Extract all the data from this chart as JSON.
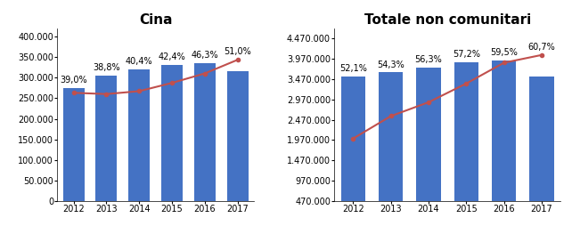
{
  "cina": {
    "title": "Cina",
    "years": [
      2012,
      2013,
      2014,
      2015,
      2016,
      2017
    ],
    "bars": [
      275000,
      305000,
      320000,
      330000,
      335000,
      315000
    ],
    "line": [
      263000,
      260000,
      267000,
      287000,
      310000,
      343000
    ],
    "pct_labels": [
      "39,0%",
      "38,8%",
      "40,4%",
      "42,4%",
      "46,3%",
      "51,0%"
    ],
    "ylim": [
      0,
      420000
    ],
    "yticks": [
      0,
      50000,
      100000,
      150000,
      200000,
      250000,
      300000,
      350000,
      400000
    ]
  },
  "totale": {
    "title": "Totale non comunitari",
    "years": [
      2012,
      2013,
      2014,
      2015,
      2016,
      2017
    ],
    "bars": [
      3530000,
      3630000,
      3750000,
      3880000,
      3930000,
      3540000
    ],
    "line": [
      2010000,
      2560000,
      2900000,
      3360000,
      3870000,
      4060000
    ],
    "pct_labels": [
      "52,1%",
      "54,3%",
      "56,3%",
      "57,2%",
      "59,5%",
      "60,7%"
    ],
    "ylim": [
      470000,
      4720000
    ],
    "yticks": [
      470000,
      970000,
      1470000,
      1970000,
      2470000,
      2970000,
      3470000,
      3970000,
      4470000
    ]
  },
  "bar_color": "#4472C4",
  "line_color": "#C0504D",
  "background_color": "#FFFFFF",
  "font_size_title": 11,
  "font_size_ticks": 7,
  "font_size_pct": 7
}
